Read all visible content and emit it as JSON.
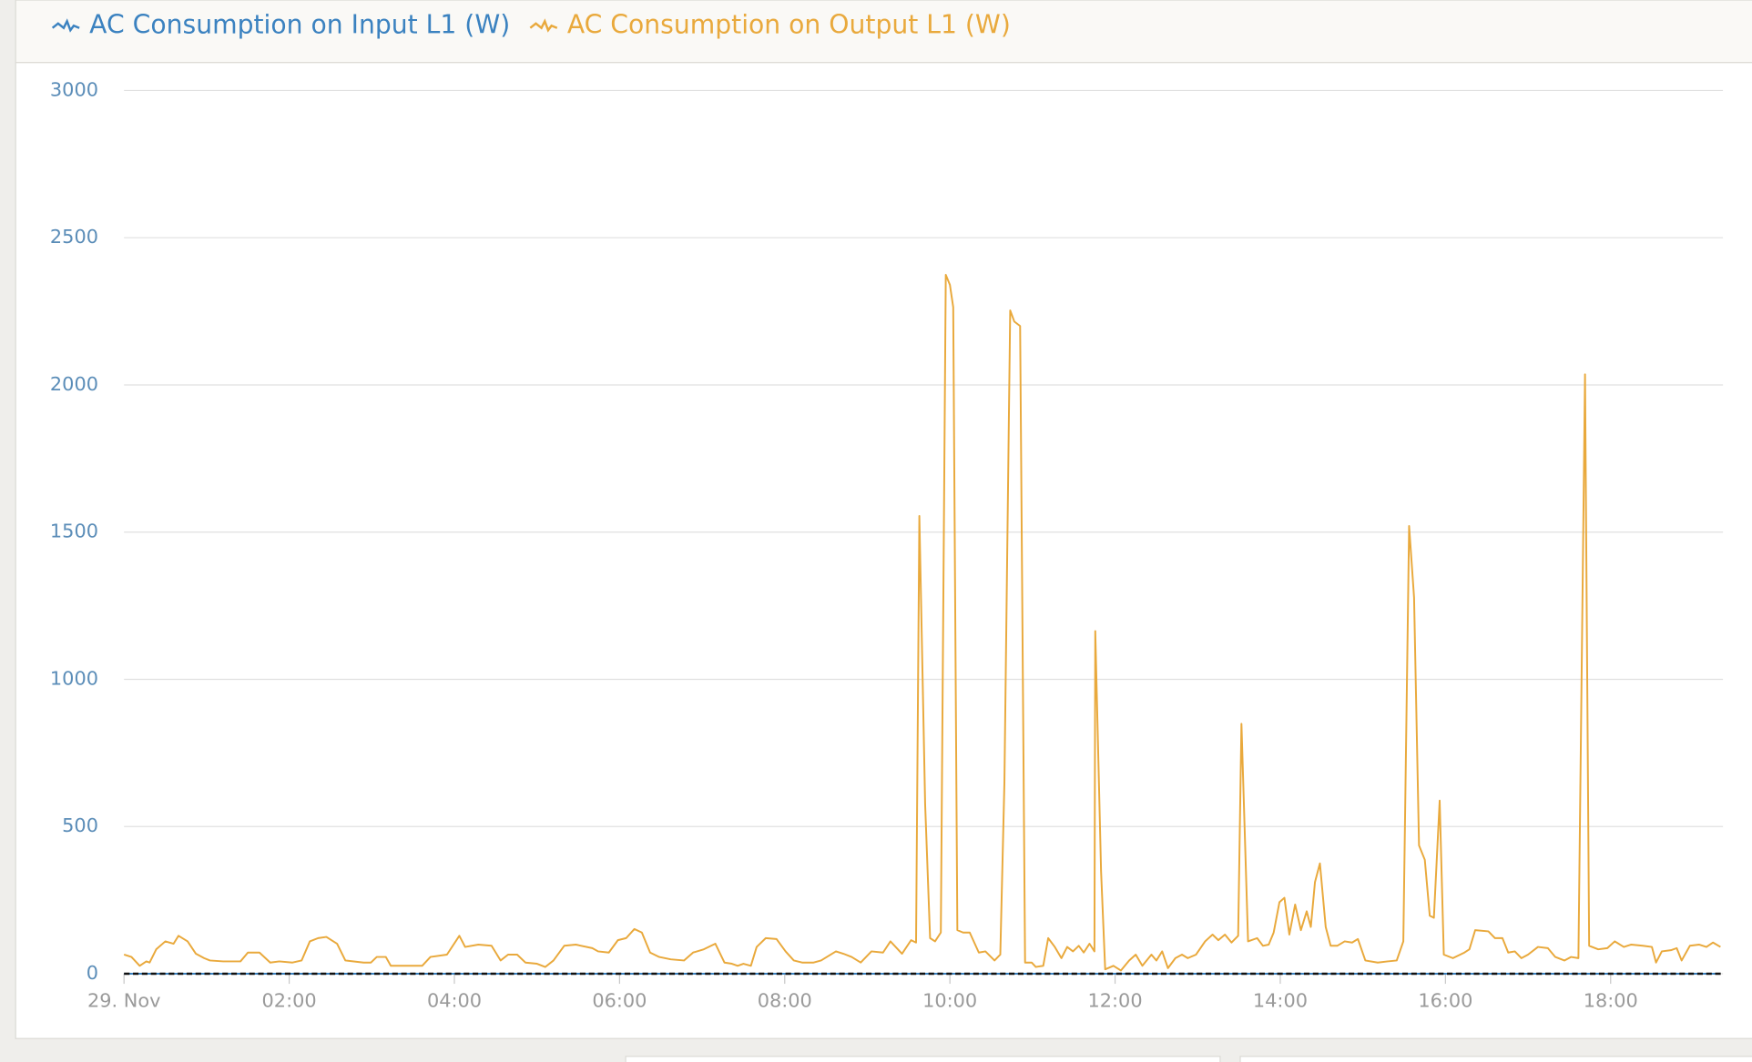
{
  "chart_data": {
    "type": "line",
    "xlim": [
      0,
      19.36
    ],
    "ylim": [
      0,
      3000
    ],
    "yticks": [
      0,
      500,
      1000,
      1500,
      2000,
      2500,
      3000
    ],
    "xticks": [
      {
        "value": 0,
        "label": "29. Nov"
      },
      {
        "value": 2,
        "label": "02:00"
      },
      {
        "value": 4,
        "label": "04:00"
      },
      {
        "value": 6,
        "label": "06:00"
      },
      {
        "value": 8,
        "label": "08:00"
      },
      {
        "value": 10,
        "label": "10:00"
      },
      {
        "value": 12,
        "label": "12:00"
      },
      {
        "value": 14,
        "label": "14:00"
      },
      {
        "value": 16,
        "label": "16:00"
      },
      {
        "value": 18,
        "label": "18:00"
      }
    ],
    "grid": true,
    "series": [
      {
        "name": "AC Consumption on Input L1 (W)",
        "color": "#3b82c0",
        "x": [
          0,
          19.33
        ],
        "values": [
          0,
          0
        ]
      },
      {
        "name": "AC Consumption on Output L1 (W)",
        "color": "#e9a93c",
        "x": [
          0,
          0.09,
          0.19,
          0.27,
          0.31,
          0.39,
          0.5,
          0.6,
          0.66,
          0.77,
          0.87,
          0.97,
          1.04,
          1.2,
          1.41,
          1.5,
          1.64,
          1.77,
          1.88,
          2.04,
          2.15,
          2.25,
          2.35,
          2.45,
          2.58,
          2.68,
          2.9,
          2.99,
          3.06,
          3.17,
          3.23,
          3.37,
          3.61,
          3.71,
          3.91,
          4.06,
          4.13,
          4.29,
          4.45,
          4.56,
          4.65,
          4.76,
          4.86,
          5.0,
          5.1,
          5.2,
          5.33,
          5.47,
          5.67,
          5.74,
          5.87,
          5.98,
          6.08,
          6.18,
          6.27,
          6.37,
          6.48,
          6.62,
          6.78,
          6.89,
          7.02,
          7.16,
          7.27,
          7.36,
          7.43,
          7.5,
          7.59,
          7.66,
          7.77,
          7.9,
          8.01,
          8.11,
          8.21,
          8.35,
          8.44,
          8.62,
          8.71,
          8.81,
          8.92,
          9.05,
          9.19,
          9.28,
          9.42,
          9.53,
          9.59,
          9.63,
          9.7,
          9.76,
          9.82,
          9.89,
          9.95,
          10.0,
          10.04,
          10.09,
          10.16,
          10.24,
          10.35,
          10.43,
          10.54,
          10.61,
          10.66,
          10.73,
          10.78,
          10.85,
          10.91,
          10.99,
          11.04,
          11.13,
          11.19,
          11.27,
          11.35,
          11.42,
          11.49,
          11.56,
          11.62,
          11.69,
          11.75,
          11.76,
          11.83,
          11.88,
          11.98,
          12.07,
          12.17,
          12.25,
          12.33,
          12.44,
          12.5,
          12.57,
          12.64,
          12.73,
          12.81,
          12.88,
          12.98,
          13.09,
          13.18,
          13.25,
          13.33,
          13.41,
          13.49,
          13.53,
          13.61,
          13.72,
          13.79,
          13.86,
          13.92,
          13.99,
          14.05,
          14.11,
          14.18,
          14.25,
          14.32,
          14.37,
          14.42,
          14.48,
          14.55,
          14.61,
          14.69,
          14.78,
          14.87,
          14.94,
          15.03,
          15.18,
          15.3,
          15.41,
          15.49,
          15.56,
          15.62,
          15.68,
          15.75,
          15.81,
          15.86,
          15.93,
          15.98,
          16.09,
          16.23,
          16.29,
          16.36,
          16.52,
          16.6,
          16.69,
          16.76,
          16.84,
          16.92,
          17.0,
          17.12,
          17.24,
          17.33,
          17.44,
          17.52,
          17.61,
          17.69,
          17.74,
          17.85,
          17.96,
          18.05,
          18.16,
          18.25,
          18.39,
          18.5,
          18.55,
          18.62,
          18.73,
          18.8,
          18.86,
          18.96,
          19.07,
          19.16,
          19.24,
          19.33
        ],
        "values": [
          65,
          57,
          27,
          42,
          38,
          83,
          110,
          102,
          129,
          110,
          68,
          53,
          45,
          42,
          42,
          72,
          72,
          38,
          42,
          38,
          45,
          110,
          121,
          125,
          102,
          45,
          38,
          38,
          57,
          57,
          27,
          27,
          27,
          57,
          65,
          129,
          91,
          99,
          95,
          45,
          65,
          65,
          38,
          34,
          23,
          45,
          95,
          99,
          87,
          76,
          72,
          114,
          121,
          152,
          140,
          72,
          57,
          49,
          45,
          72,
          83,
          102,
          38,
          34,
          27,
          34,
          27,
          91,
          121,
          118,
          76,
          45,
          38,
          38,
          45,
          76,
          68,
          57,
          38,
          76,
          72,
          110,
          68,
          114,
          106,
          1555,
          576,
          121,
          110,
          140,
          2374,
          2340,
          2264,
          148,
          140,
          140,
          72,
          76,
          45,
          65,
          652,
          2253,
          2215,
          2200,
          38,
          38,
          23,
          27,
          121,
          91,
          53,
          91,
          76,
          95,
          72,
          102,
          76,
          1164,
          349,
          15,
          27,
          11,
          45,
          65,
          27,
          65,
          45,
          76,
          19,
          53,
          65,
          53,
          65,
          110,
          133,
          114,
          133,
          106,
          129,
          849,
          110,
          121,
          95,
          99,
          140,
          243,
          258,
          133,
          235,
          148,
          212,
          159,
          311,
          375,
          159,
          95,
          95,
          110,
          106,
          118,
          45,
          38,
          42,
          45,
          110,
          1521,
          1278,
          436,
          387,
          197,
          190,
          588,
          65,
          53,
          72,
          83,
          148,
          144,
          121,
          121,
          72,
          76,
          53,
          65,
          91,
          87,
          57,
          45,
          57,
          53,
          2036,
          95,
          83,
          87,
          110,
          91,
          99,
          95,
          91,
          38,
          76,
          80,
          87,
          45,
          95,
          99,
          91,
          106,
          91
        ]
      }
    ]
  }
}
